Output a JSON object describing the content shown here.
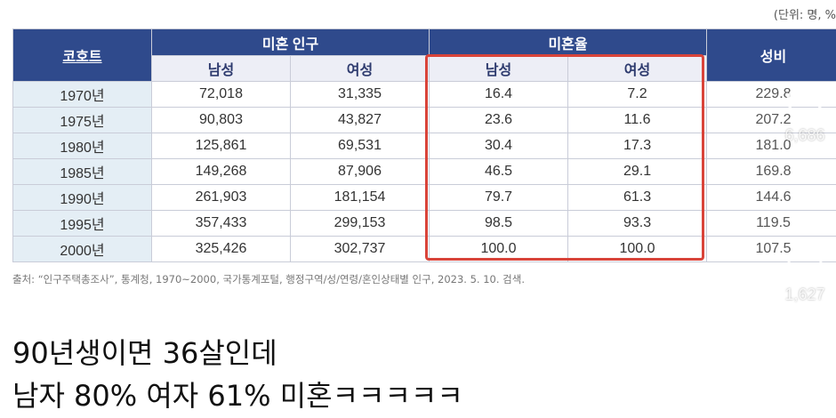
{
  "unit_note": "(단위: 명, %",
  "table": {
    "header": {
      "cohort": "코호트",
      "unmarried_population": "미혼 인구",
      "unmarried_rate": "미혼율",
      "sex_ratio": "성비",
      "male": "남성",
      "female": "여성"
    },
    "rows": [
      {
        "year": "1970년",
        "pop_m": "72,018",
        "pop_f": "31,335",
        "rate_m": "16.4",
        "rate_f": "7.2",
        "ratio": "229.8"
      },
      {
        "year": "1975년",
        "pop_m": "90,803",
        "pop_f": "43,827",
        "rate_m": "23.6",
        "rate_f": "11.6",
        "ratio": "207.2"
      },
      {
        "year": "1980년",
        "pop_m": "125,861",
        "pop_f": "69,531",
        "rate_m": "30.4",
        "rate_f": "17.3",
        "ratio": "181.0"
      },
      {
        "year": "1985년",
        "pop_m": "149,268",
        "pop_f": "87,906",
        "rate_m": "46.5",
        "rate_f": "29.1",
        "ratio": "169.8"
      },
      {
        "year": "1990년",
        "pop_m": "261,903",
        "pop_f": "181,154",
        "rate_m": "79.7",
        "rate_f": "61.3",
        "ratio": "144.6"
      },
      {
        "year": "1995년",
        "pop_m": "357,433",
        "pop_f": "299,153",
        "rate_m": "98.5",
        "rate_f": "93.3",
        "ratio": "119.5"
      },
      {
        "year": "2000년",
        "pop_m": "325,426",
        "pop_f": "302,737",
        "rate_m": "100.0",
        "rate_f": "100.0",
        "ratio": "107.5"
      }
    ]
  },
  "source": "출처: “인구주택총조사”, 통계청, 1970~2000, 국가통계포털, 행정구역/성/연령/혼인상태별 인구, 2023. 5. 10. 검색.",
  "caption": {
    "line1": "90년생이면 36살인데",
    "line2": "남자 80% 여자 61% 미혼ㅋㅋㅋㅋㅋ"
  },
  "overlay": {
    "like_icon": "heart-icon",
    "like_count": "6,686",
    "comment_icon": "comment-icon",
    "comment_count": "1,627",
    "share_icon": "share-icon"
  },
  "colors": {
    "header_dark": "#2f4a8c",
    "header_light": "#edeef6",
    "year_cell": "#e4eef5",
    "highlight_box": "#d9443a"
  }
}
